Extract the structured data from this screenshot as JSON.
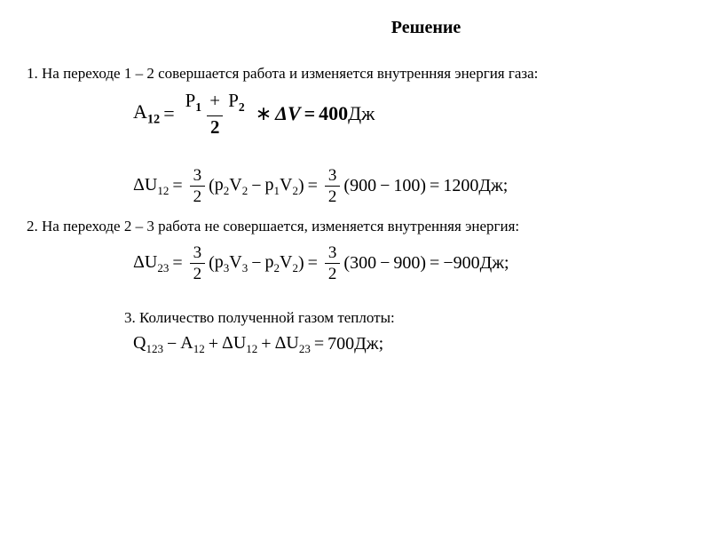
{
  "title": "Решение",
  "step1": {
    "text": "1. На переходе 1 – 2 совершается работа и изменяется внутренняя энергия газа:",
    "eqA": {
      "lhs": "A",
      "lhs_sub": "12",
      "frac_num_p1": "P",
      "frac_num_p1_sub": "1",
      "frac_plus": "+",
      "frac_num_p2": "P",
      "frac_num_p2_sub": "2",
      "frac_den": "2",
      "mult": "∗",
      "dv": "ΔV",
      "eq": "=",
      "val": "400",
      "unit": "Дж"
    },
    "eqU": {
      "lhs": "ΔU",
      "lhs_sub": "12",
      "coef_num": "3",
      "coef_den": "2",
      "p2": "p",
      "p2_sub": "2",
      "v2a": "V",
      "v2a_sub": "2",
      "minus": "−",
      "p1": "p",
      "p1_sub": "1",
      "v2b": "V",
      "v2b_sub": "2",
      "n1": "900",
      "n2": "100",
      "res": "1200",
      "unit": "Дж;"
    }
  },
  "step2": {
    "text": "2. На переходе 2 – 3 работа не совершается, изменяется внутренняя энергия:",
    "eqU": {
      "lhs": "ΔU",
      "lhs_sub": "23",
      "coef_num": "3",
      "coef_den": "2",
      "p3": "p",
      "p3_sub": "3",
      "v3": "V",
      "v3_sub": "3",
      "minus": "−",
      "p2": "p",
      "p2_sub": "2",
      "v2": "V",
      "v2_sub": "2",
      "n1": "300",
      "n2": "900",
      "res": "−900",
      "unit": "Дж;"
    }
  },
  "step3": {
    "text": "3. Количество полученной газом теплоты:",
    "eqQ": {
      "q": "Q",
      "q_sub": "123",
      "a": "A",
      "a_sub": "12",
      "u12": "ΔU",
      "u12_sub": "12",
      "u23": "ΔU",
      "u23_sub": "23",
      "res": "700",
      "unit": "Дж;"
    }
  },
  "colors": {
    "text": "#000000",
    "background": "#ffffff"
  },
  "fonts": {
    "family": "Times New Roman",
    "title_size_pt": 20,
    "body_size_pt": 17,
    "equation_size_pt": 22
  }
}
